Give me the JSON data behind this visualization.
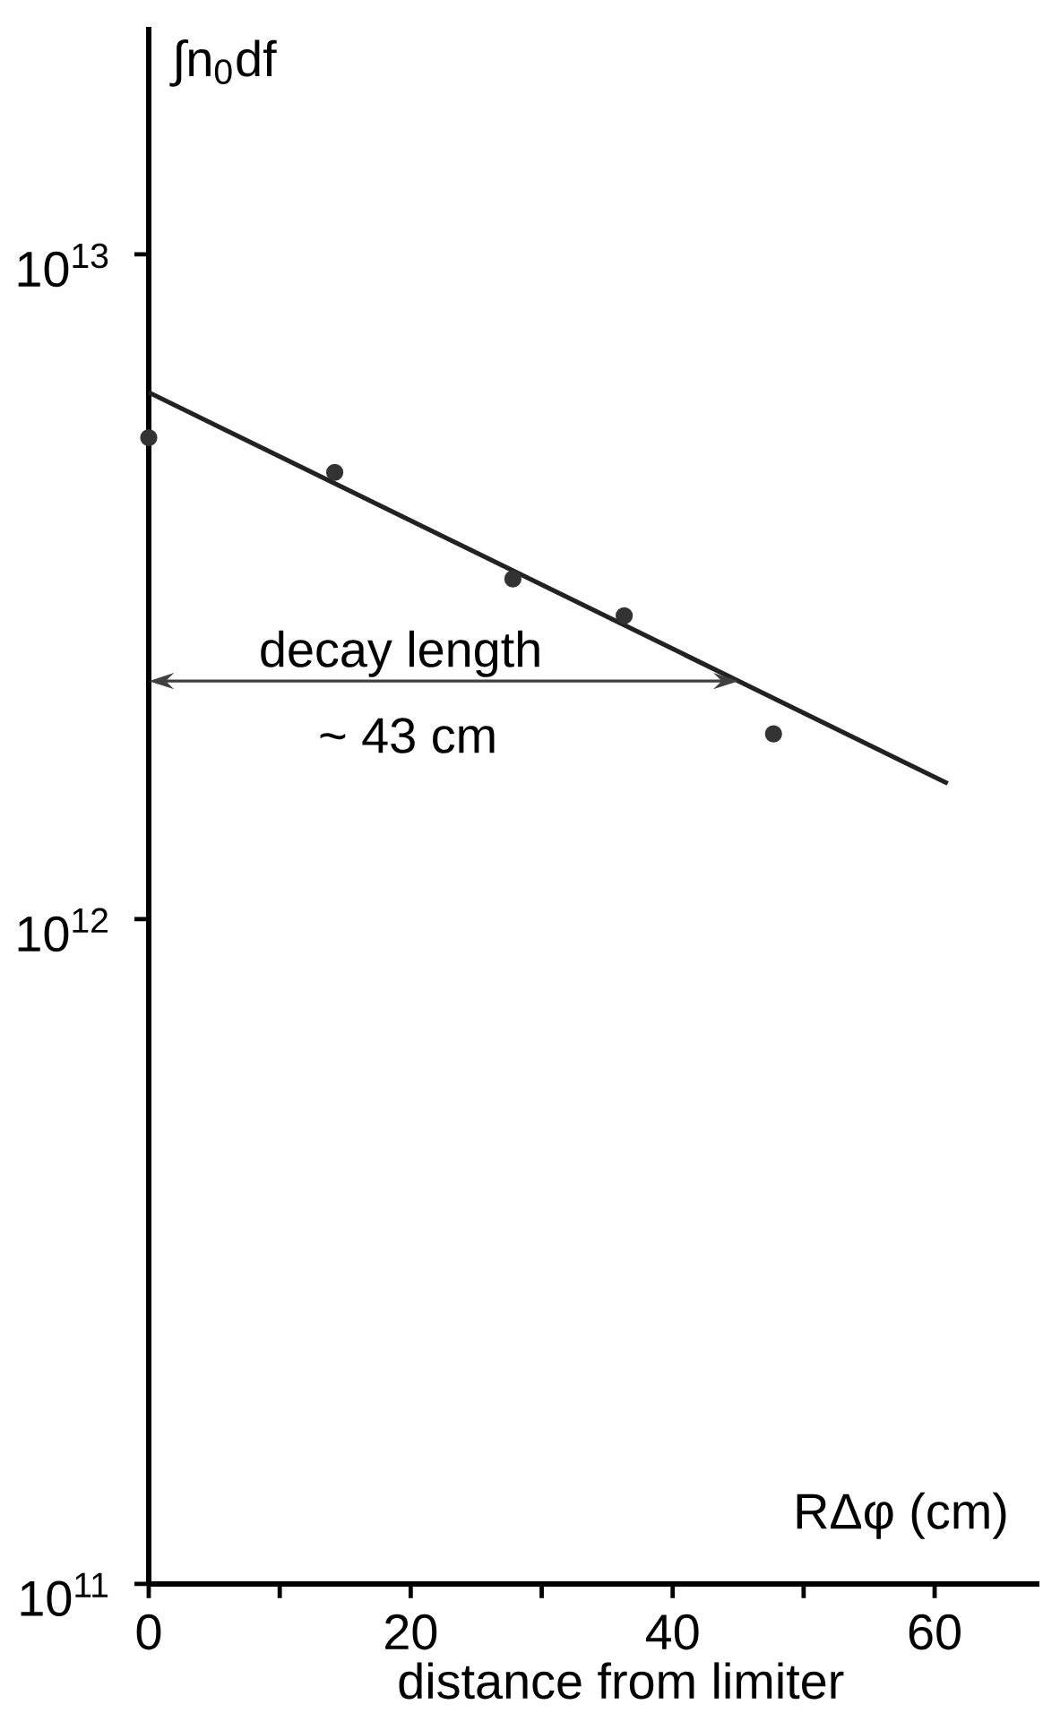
{
  "chart_data": {
    "type": "scatter",
    "ylabel": "∫n$_{0}$df",
    "xlabel": "RΔφ (cm)",
    "annotations": [
      "decay length",
      "~ 43 cm",
      "distance from limiter"
    ],
    "xlim": [
      0,
      68
    ],
    "ylim": [
      100000000000.0,
      22000000000000.0
    ],
    "log": "y",
    "marker": "circle",
    "xticks": [
      0,
      {
        "value": 10,
        "label": null
      },
      20,
      {
        "value": 30,
        "label": null
      },
      40,
      {
        "value": 50,
        "label": null
      },
      60
    ],
    "yticks": [
      {
        "value": 100000000000.0,
        "label": "10$^{11}$"
      },
      {
        "value": 1000000000000.0,
        "label": "10$^{12}$"
      },
      {
        "value": 10000000000000.0,
        "label": "10$^{13}$"
      }
    ],
    "series": [
      {
        "color": "#333333",
        "x": [
          0,
          14.2,
          27.8,
          36.3,
          47.7
        ],
        "values": [
          5300000000000.0,
          4700000000000.0,
          3250000000000.0,
          2860000000000.0,
          1900000000000.0
        ]
      },
      {
        "type": "line",
        "color": "#222222",
        "marker": "none",
        "x": [
          0,
          61
        ],
        "values": [
          6200000000000.0,
          1600000000000.0
        ]
      }
    ]
  }
}
